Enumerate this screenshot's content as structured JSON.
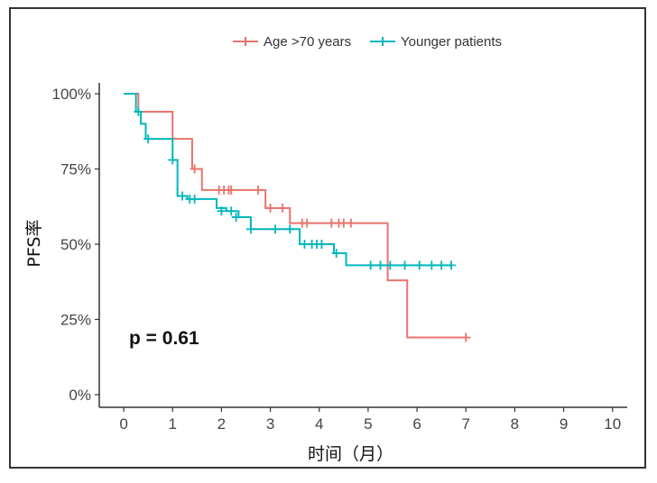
{
  "chart_data": {
    "type": "line",
    "subtype": "kaplan-meier step",
    "xlabel": "时间（月）",
    "ylabel": "PFS率",
    "xlim": [
      -0.5,
      10.3
    ],
    "ylim": [
      0,
      1.0
    ],
    "x_ticks": [
      "0",
      "1",
      "2",
      "3",
      "4",
      "5",
      "6",
      "7",
      "8",
      "9",
      "10"
    ],
    "y_ticks": [
      "0%",
      "25%",
      "50%",
      "75%",
      "100%"
    ],
    "legend_position": "top",
    "annotation": "p = 0.61",
    "series": [
      {
        "name": "Age >70 years",
        "color": "#e8736c",
        "steps": [
          [
            0,
            1.0
          ],
          [
            0.3,
            0.94
          ],
          [
            1.0,
            0.85
          ],
          [
            1.4,
            0.75
          ],
          [
            1.6,
            0.68
          ],
          [
            2.9,
            0.62
          ],
          [
            3.4,
            0.57
          ],
          [
            5.4,
            0.38
          ],
          [
            5.8,
            0.19
          ],
          [
            7.0,
            0.19
          ]
        ],
        "censors": [
          [
            1.45,
            0.75
          ],
          [
            1.95,
            0.68
          ],
          [
            2.05,
            0.68
          ],
          [
            2.15,
            0.68
          ],
          [
            2.2,
            0.68
          ],
          [
            2.75,
            0.68
          ],
          [
            3.0,
            0.62
          ],
          [
            3.25,
            0.62
          ],
          [
            3.65,
            0.57
          ],
          [
            3.75,
            0.57
          ],
          [
            4.25,
            0.57
          ],
          [
            4.4,
            0.57
          ],
          [
            4.5,
            0.57
          ],
          [
            4.65,
            0.57
          ],
          [
            7.0,
            0.19
          ]
        ]
      },
      {
        "name": "Younger patients",
        "color": "#00b7bb",
        "steps": [
          [
            0,
            1.0
          ],
          [
            0.25,
            0.94
          ],
          [
            0.35,
            0.9
          ],
          [
            0.45,
            0.85
          ],
          [
            1.0,
            0.78
          ],
          [
            1.1,
            0.66
          ],
          [
            1.3,
            0.65
          ],
          [
            1.9,
            0.62
          ],
          [
            2.1,
            0.61
          ],
          [
            2.35,
            0.59
          ],
          [
            2.6,
            0.55
          ],
          [
            3.6,
            0.5
          ],
          [
            4.3,
            0.47
          ],
          [
            4.55,
            0.43
          ],
          [
            6.7,
            0.43
          ]
        ],
        "censors": [
          [
            0.3,
            0.94
          ],
          [
            0.5,
            0.85
          ],
          [
            1.0,
            0.78
          ],
          [
            1.2,
            0.66
          ],
          [
            1.35,
            0.65
          ],
          [
            1.45,
            0.65
          ],
          [
            2.0,
            0.61
          ],
          [
            2.2,
            0.61
          ],
          [
            2.3,
            0.59
          ],
          [
            2.6,
            0.55
          ],
          [
            3.1,
            0.55
          ],
          [
            3.4,
            0.55
          ],
          [
            3.7,
            0.5
          ],
          [
            3.85,
            0.5
          ],
          [
            3.95,
            0.5
          ],
          [
            4.05,
            0.5
          ],
          [
            4.35,
            0.47
          ],
          [
            5.05,
            0.43
          ],
          [
            5.25,
            0.43
          ],
          [
            5.45,
            0.43
          ],
          [
            5.75,
            0.43
          ],
          [
            6.05,
            0.43
          ],
          [
            6.3,
            0.43
          ],
          [
            6.5,
            0.43
          ],
          [
            6.7,
            0.43
          ]
        ]
      }
    ]
  }
}
